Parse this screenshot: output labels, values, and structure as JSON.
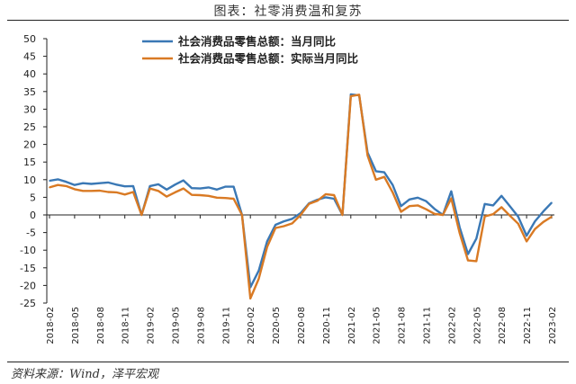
{
  "title": "图表：社零消费温和复苏",
  "source": "资料来源：Wind，泽平宏观",
  "chart_data": {
    "type": "line",
    "title": "图表：社零消费温和复苏",
    "xlabel": "",
    "ylabel": "",
    "ylim": [
      -25,
      50
    ],
    "yticks": [
      50,
      45,
      40,
      35,
      30,
      25,
      20,
      15,
      10,
      5,
      0,
      -5,
      -10,
      -15,
      -20,
      -25
    ],
    "grid": false,
    "legend": "top-center",
    "x": [
      "2018-02",
      "2018-03",
      "2018-04",
      "2018-05",
      "2018-06",
      "2018-07",
      "2018-08",
      "2018-09",
      "2018-10",
      "2018-11",
      "2018-12",
      "2019-01",
      "2019-02",
      "2019-03",
      "2019-04",
      "2019-05",
      "2019-06",
      "2019-07",
      "2019-08",
      "2019-09",
      "2019-10",
      "2019-11",
      "2019-12",
      "2020-01",
      "2020-02",
      "2020-03",
      "2020-04",
      "2020-05",
      "2020-06",
      "2020-07",
      "2020-08",
      "2020-09",
      "2020-10",
      "2020-11",
      "2020-12",
      "2021-01",
      "2021-02",
      "2021-03",
      "2021-04",
      "2021-05",
      "2021-06",
      "2021-07",
      "2021-08",
      "2021-09",
      "2021-10",
      "2021-11",
      "2021-12",
      "2022-01",
      "2022-02",
      "2022-03",
      "2022-04",
      "2022-05",
      "2022-06",
      "2022-07",
      "2022-08",
      "2022-09",
      "2022-10",
      "2022-11",
      "2022-12",
      "2023-01",
      "2023-02"
    ],
    "xticks": [
      "2018-02",
      "2018-05",
      "2018-08",
      "2018-11",
      "2019-02",
      "2019-05",
      "2019-08",
      "2019-11",
      "2020-02",
      "2020-05",
      "2020-08",
      "2020-11",
      "2021-02",
      "2021-05",
      "2021-08",
      "2021-11",
      "2022-02",
      "2022-05",
      "2022-08",
      "2022-11",
      "2023-02"
    ],
    "series": [
      {
        "name": "社会消费品零售总额：当月同比",
        "color": "#3a78b5",
        "values": [
          9.7,
          10.1,
          9.4,
          8.5,
          9.0,
          8.8,
          9.0,
          9.2,
          8.6,
          8.1,
          8.2,
          0,
          8.2,
          8.7,
          7.2,
          8.6,
          9.8,
          7.6,
          7.5,
          7.8,
          7.2,
          8.0,
          8.0,
          0,
          -20.5,
          -15.8,
          -7.5,
          -2.8,
          -1.8,
          -1.1,
          0.5,
          3.3,
          4.3,
          5.0,
          4.6,
          0,
          34.2,
          33.9,
          17.7,
          12.4,
          12.1,
          8.5,
          2.5,
          4.4,
          4.9,
          3.9,
          1.7,
          0,
          6.7,
          -3.5,
          -11.1,
          -6.7,
          3.1,
          2.7,
          5.4,
          2.5,
          -0.5,
          -5.9,
          -1.8,
          1.0,
          3.5
        ]
      },
      {
        "name": "社会消费品零售总额：实际当月同比",
        "color": "#d97a24",
        "values": [
          7.8,
          8.5,
          8.2,
          7.3,
          6.8,
          6.8,
          6.9,
          6.5,
          6.4,
          5.8,
          6.5,
          0,
          7.5,
          6.8,
          5.2,
          6.4,
          7.5,
          5.7,
          5.6,
          5.4,
          4.9,
          4.8,
          4.6,
          0,
          -23.7,
          -18.1,
          -9.1,
          -3.7,
          -3.2,
          -2.4,
          0,
          3.1,
          4.0,
          5.9,
          5.6,
          0,
          33.7,
          34.1,
          16.9,
          10.0,
          10.8,
          6.4,
          0.9,
          2.5,
          2.7,
          1.6,
          0.3,
          0,
          4.7,
          -5.1,
          -12.9,
          -13.1,
          -0.4,
          0.2,
          2.2,
          -0.2,
          -2.5,
          -7.5,
          -4.0,
          -2.0,
          -0.5
        ]
      }
    ]
  }
}
